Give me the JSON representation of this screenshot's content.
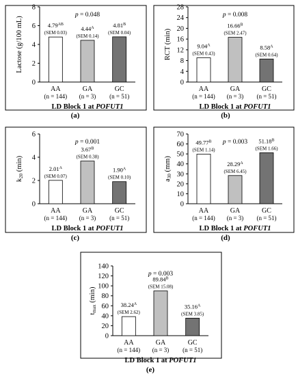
{
  "chart_data": [
    {
      "panel": "(a)",
      "type": "bar",
      "ylabel": "Lactose (g/100 mL)",
      "xlabel_prefix": "LD Block 1 at ",
      "xlabel_gene": "POFUT1",
      "p_value_label": "p",
      "p_value_text": " = 0.048",
      "ylim": [
        0,
        8
      ],
      "yticks": [
        0,
        2,
        4,
        6,
        8
      ],
      "categories": [
        "AA",
        "GA",
        "GC"
      ],
      "ns": [
        "(n = 144)",
        "(n = 3)",
        "(n = 51)"
      ],
      "values": [
        4.79,
        4.44,
        4.81
      ],
      "value_labels": [
        "4.79",
        "4.44",
        "4.81"
      ],
      "superscripts": [
        "AB",
        "A",
        "B"
      ],
      "sems": [
        "(SEM 0.03)",
        "(SEM 0.14)",
        "(SEM 0.04)"
      ]
    },
    {
      "panel": "(b)",
      "type": "bar",
      "ylabel": "RCT (min)",
      "xlabel_prefix": "LD Block 1 at ",
      "xlabel_gene": "POFUT1",
      "p_value_label": "p",
      "p_value_text": " = 0.008",
      "ylim": [
        0,
        28
      ],
      "yticks": [
        0,
        4,
        8,
        12,
        16,
        20,
        24,
        28
      ],
      "categories": [
        "AA",
        "GA",
        "GC"
      ],
      "ns": [
        "(n = 144)",
        "(n = 3)",
        "(n = 51)"
      ],
      "values": [
        9.04,
        16.66,
        8.58
      ],
      "value_labels": [
        "9.04",
        "16.66",
        "8.58"
      ],
      "superscripts": [
        "A",
        "B",
        "A"
      ],
      "sems": [
        "(SEM 0.43)",
        "(SEM 2.47)",
        "(SEM 0.64)"
      ]
    },
    {
      "panel": "(c)",
      "type": "bar",
      "ylabel": "k20 (min)",
      "xlabel_prefix": "LD Block 1 at ",
      "xlabel_gene": "POFUT1",
      "p_value_label": "p",
      "p_value_text": " = 0.001",
      "ylim": [
        0,
        6
      ],
      "yticks": [
        0,
        2,
        4,
        6
      ],
      "categories": [
        "AA",
        "GA",
        "GC"
      ],
      "ns": [
        "(n = 144)",
        "(n = 3)",
        "(n = 51)"
      ],
      "values": [
        2.01,
        3.67,
        1.9
      ],
      "value_labels": [
        "2.01",
        "3.67",
        "1.90"
      ],
      "superscripts": [
        "A",
        "B",
        "A"
      ],
      "sems": [
        "(SEM 0.07)",
        "(SEM 0.38)",
        "(SEM 0.10)"
      ]
    },
    {
      "panel": "(d)",
      "type": "bar",
      "ylabel": "a30 (mm)",
      "xlabel_prefix": "LD Block 1 at ",
      "xlabel_gene": "POFUT1",
      "p_value_label": "p",
      "p_value_text": " = 0.003",
      "ylim": [
        0,
        70
      ],
      "yticks": [
        0,
        10,
        20,
        30,
        40,
        50,
        60,
        70
      ],
      "categories": [
        "AA",
        "GA",
        "GC"
      ],
      "ns": [
        "(n = 144)",
        "(n = 3)",
        "(n = 51)"
      ],
      "values": [
        49.77,
        28.29,
        51.18
      ],
      "value_labels": [
        "49.77",
        "28.29",
        "51.18"
      ],
      "superscripts": [
        "B",
        "A",
        "B"
      ],
      "sems": [
        "(SEM 1.14)",
        "(SEM 6.45)",
        "(SEM 1.66)"
      ]
    },
    {
      "panel": "(e)",
      "type": "bar",
      "ylabel": "tmax (min)",
      "xlabel_prefix": "LD Block 1 at ",
      "xlabel_gene": "POFUT1",
      "p_value_label": "p",
      "p_value_text": " = 0.003",
      "ylim": [
        0,
        140
      ],
      "yticks": [
        0,
        20,
        40,
        60,
        80,
        100,
        120,
        140
      ],
      "categories": [
        "AA",
        "GA",
        "GC"
      ],
      "ns": [
        "(n = 144)",
        "(n = 3)",
        "(n = 51)"
      ],
      "values": [
        38.24,
        89.84,
        35.16
      ],
      "value_labels": [
        "38.24",
        "89.84",
        "35.16"
      ],
      "superscripts": [
        "A",
        "B",
        "A"
      ],
      "sems": [
        "(SEM 2.62)",
        "(SEM 15.08)",
        "(SEM 3.85)"
      ]
    }
  ],
  "colors": {
    "bar_fills": [
      "#ffffff",
      "#c0c0c0",
      "#737373"
    ],
    "bar_stroke": "#000000",
    "axis": "#000000",
    "panel_border": "#000000"
  }
}
